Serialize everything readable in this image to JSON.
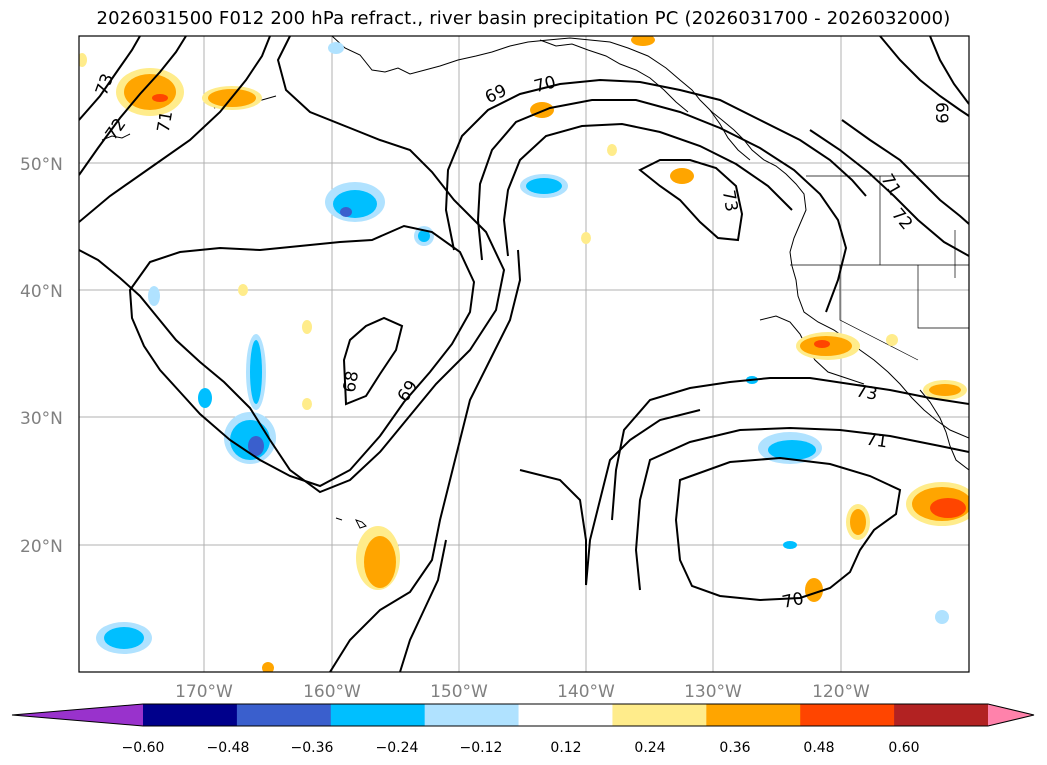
{
  "title": "2026031500 F012 200 hPa refract., river basin precipitation PC (2026031700 - 2026032000)",
  "map": {
    "lat_labels": [
      "50°N",
      "40°N",
      "30°N",
      "20°N"
    ],
    "lon_labels": [
      "170°W",
      "160°W",
      "150°W",
      "140°W",
      "130°W",
      "120°W"
    ],
    "contour_labels": [
      "73",
      "72",
      "71",
      "69",
      "70",
      "73",
      "69",
      "72",
      "71",
      "68",
      "69",
      "73",
      "71",
      "70"
    ]
  },
  "colorbar": {
    "ticks": [
      "−0.60",
      "−0.48",
      "−0.36",
      "−0.24",
      "−0.12",
      "0.12",
      "0.24",
      "0.36",
      "0.48",
      "0.60"
    ],
    "colors": [
      "#9932cc",
      "#00008b",
      "#3a5fcd",
      "#00bfff",
      "#b0e2ff",
      "#ffffff",
      "#ffec8b",
      "#ffa500",
      "#ff4500",
      "#b22222",
      "#ff82ab"
    ]
  }
}
